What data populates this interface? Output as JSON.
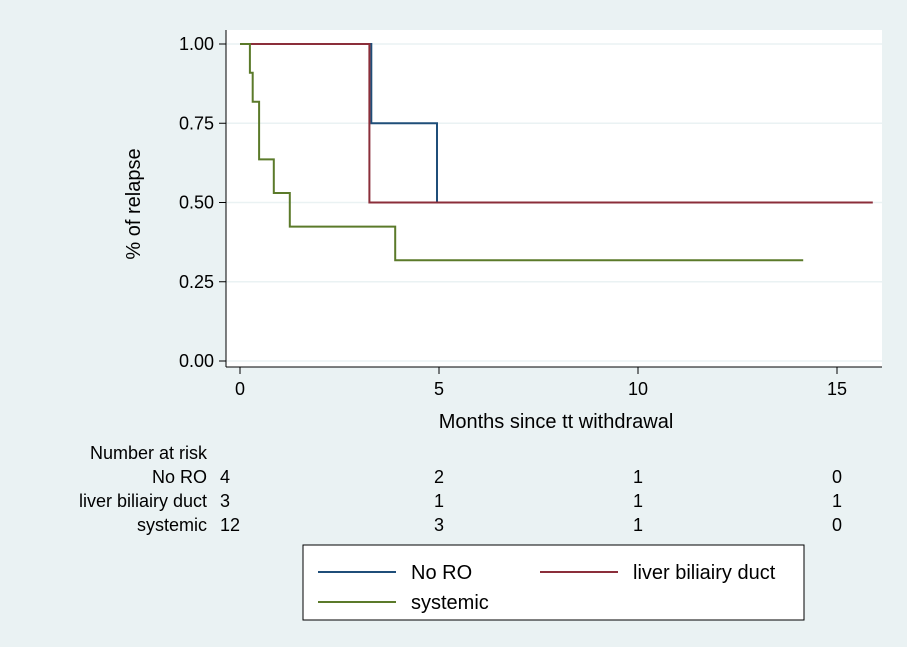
{
  "chart_data": {
    "type": "line",
    "step": true,
    "title": "",
    "xlabel": "Months since tt withdrawal",
    "ylabel": "% of relapse",
    "xlim": [
      0,
      16
    ],
    "ylim": [
      0,
      1
    ],
    "x_ticks": [
      "0",
      "5",
      "10",
      "15"
    ],
    "y_ticks": [
      "0.00",
      "0.25",
      "0.50",
      "0.75",
      "1.00"
    ],
    "grid": true,
    "legend_position": "bottom",
    "series": [
      {
        "name": "No RO",
        "color": "#1f4e79",
        "points": [
          [
            0,
            1.0
          ],
          [
            3.3,
            1.0
          ],
          [
            3.3,
            0.75
          ],
          [
            4.95,
            0.75
          ],
          [
            4.95,
            0.5
          ],
          [
            11.35,
            0.5
          ]
        ]
      },
      {
        "name": "liver biliairy duct",
        "color": "#8b2e3a",
        "points": [
          [
            0,
            1.0
          ],
          [
            3.25,
            1.0
          ],
          [
            3.25,
            0.5
          ],
          [
            15.9,
            0.5
          ]
        ]
      },
      {
        "name": "systemic",
        "color": "#5b7a2a",
        "points": [
          [
            0,
            1.0
          ],
          [
            0.25,
            1.0
          ],
          [
            0.25,
            0.909
          ],
          [
            0.32,
            0.909
          ],
          [
            0.32,
            0.818
          ],
          [
            0.48,
            0.818
          ],
          [
            0.48,
            0.636
          ],
          [
            0.85,
            0.636
          ],
          [
            0.85,
            0.53
          ],
          [
            1.25,
            0.53
          ],
          [
            1.25,
            0.424
          ],
          [
            3.9,
            0.424
          ],
          [
            3.9,
            0.318
          ],
          [
            14.15,
            0.318
          ]
        ]
      }
    ]
  },
  "risk_table": {
    "title": "Number at risk",
    "columns_x": [
      0,
      5,
      10,
      15
    ],
    "rows": [
      {
        "label": "No RO",
        "values": [
          "4",
          "2",
          "1",
          "0"
        ]
      },
      {
        "label": "liver biliairy duct",
        "values": [
          "3",
          "1",
          "1",
          "1"
        ]
      },
      {
        "label": "systemic",
        "values": [
          "12",
          "3",
          "1",
          "0"
        ]
      }
    ]
  },
  "colors": {
    "background": "#eaf2f3",
    "plot_background": "#ffffff",
    "gridline": "#eaf2f3"
  }
}
